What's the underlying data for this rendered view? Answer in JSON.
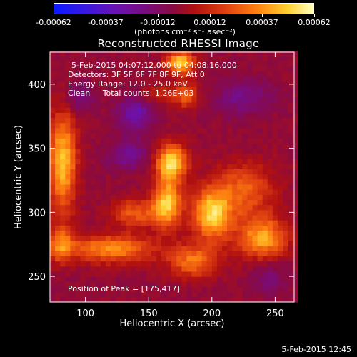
{
  "colorbar": {
    "ticks": [
      "-0.00062",
      "-0.00037",
      "-0.00012",
      "0.00012",
      "0.00037",
      "0.00062"
    ],
    "label": "(photons cm⁻² s⁻¹ asec⁻²)",
    "min": -0.00062,
    "max": 0.00062
  },
  "annotations": {
    "time_range": "5-Feb-2015 04:07:12.000 to 04:08:16.000",
    "detectors": "Detectors: 3F 5F 6F 7F 8F 9F, Att 0",
    "energy_range": "Energy Range: 12.0 - 25.0 keV",
    "clean_counts": "Clean     Total counts: 1.26E+03",
    "peak_position": "Position of Peak = [175,417]"
  },
  "footer": {
    "date": "5-Feb-2015 12:45"
  },
  "chart_data": {
    "type": "heatmap",
    "title": "Reconstructed RHESSI Image",
    "xlabel": "Heliocentric X (arcsec)",
    "ylabel": "Heliocentric Y (arcsec)",
    "xlim": [
      72,
      265
    ],
    "ylim": [
      230,
      425
    ],
    "x_ticks": [
      100,
      150,
      200,
      250
    ],
    "y_ticks": [
      250,
      300,
      350,
      400
    ],
    "colormap": [
      "#0a1aff",
      "#3a18e0",
      "#6a12b0",
      "#7a0c7a",
      "#8a0a40",
      "#b01010",
      "#e04010",
      "#ff8010",
      "#ffd030",
      "#ffffc0"
    ],
    "peak": [
      175,
      417
    ],
    "emission_sources": [
      {
        "x": 175,
        "y": 417,
        "value": 0.00055,
        "sx": 8,
        "sy": 6
      },
      {
        "x": 82,
        "y": 340,
        "value": 0.0005,
        "sx": 8,
        "sy": 28
      },
      {
        "x": 168,
        "y": 340,
        "value": 0.00055,
        "sx": 9,
        "sy": 10
      },
      {
        "x": 165,
        "y": 308,
        "value": 0.0005,
        "sx": 8,
        "sy": 14
      },
      {
        "x": 140,
        "y": 300,
        "value": 0.0003,
        "sx": 14,
        "sy": 8
      },
      {
        "x": 200,
        "y": 298,
        "value": 0.00052,
        "sx": 11,
        "sy": 14
      },
      {
        "x": 225,
        "y": 318,
        "value": 0.0003,
        "sx": 18,
        "sy": 15
      },
      {
        "x": 240,
        "y": 280,
        "value": 0.00045,
        "sx": 14,
        "sy": 12
      },
      {
        "x": 120,
        "y": 272,
        "value": 0.0004,
        "sx": 25,
        "sy": 8
      },
      {
        "x": 185,
        "y": 262,
        "value": 0.00035,
        "sx": 14,
        "sy": 9
      },
      {
        "x": 80,
        "y": 275,
        "value": 0.0003,
        "sx": 7,
        "sy": 10
      },
      {
        "x": 160,
        "y": 392,
        "value": 0.00018,
        "sx": 14,
        "sy": 6
      },
      {
        "x": 180,
        "y": 392,
        "value": 0.00025,
        "sx": 6,
        "sy": 8
      }
    ],
    "background_level": -4e-05,
    "negative_regions": [
      {
        "x": 140,
        "y": 378,
        "value": -0.0003,
        "sx": 10,
        "sy": 10
      },
      {
        "x": 95,
        "y": 390,
        "value": -0.0002,
        "sx": 8,
        "sy": 8
      },
      {
        "x": 135,
        "y": 345,
        "value": -0.00022,
        "sx": 12,
        "sy": 8
      },
      {
        "x": 225,
        "y": 390,
        "value": -0.0002,
        "sx": 15,
        "sy": 10
      },
      {
        "x": 245,
        "y": 250,
        "value": -0.00015,
        "sx": 10,
        "sy": 10
      }
    ]
  }
}
